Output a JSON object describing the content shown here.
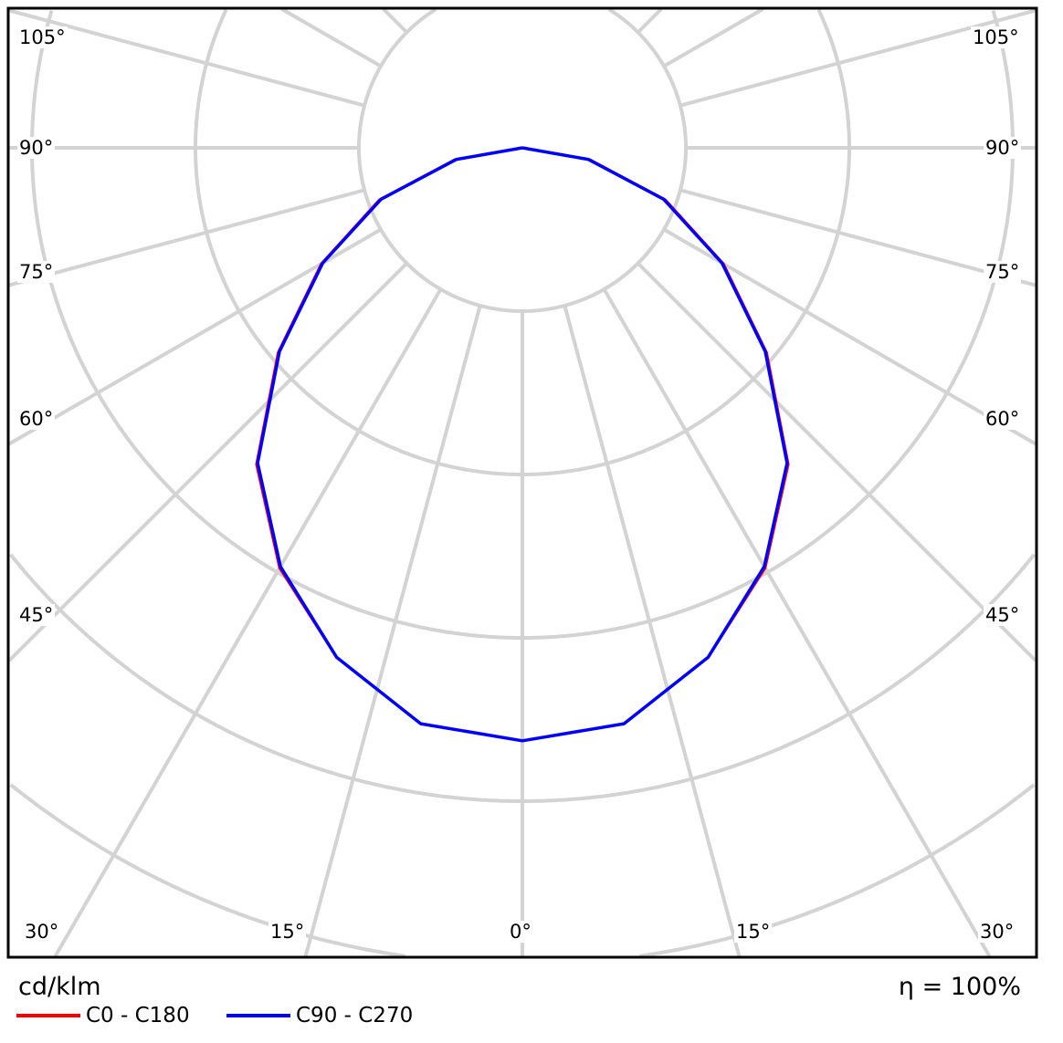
{
  "chart_data": {
    "type": "polar-line",
    "unit_label": "cd/klm",
    "efficiency_label": "η = 100%",
    "angle_labels": {
      "left": [
        "105°",
        "90°",
        "75°",
        "60°",
        "45°"
      ],
      "right": [
        "105°",
        "90°",
        "75°",
        "60°",
        "45°"
      ],
      "bottom": [
        "30°",
        "15°",
        "0°",
        "15°",
        "30°"
      ]
    },
    "grid": true,
    "angles_deg": [
      0,
      10,
      20,
      30,
      40,
      50,
      60,
      70,
      80,
      90
    ],
    "series": [
      {
        "name": "C0 - C180",
        "color": "#ff0000",
        "values": [
          3.63,
          3.58,
          3.32,
          2.97,
          2.53,
          1.95,
          1.42,
          0.93,
          0.42,
          0
        ]
      },
      {
        "name": "C90 - C270",
        "color": "#0000ff",
        "values": [
          3.63,
          3.58,
          3.32,
          2.96,
          2.52,
          1.94,
          1.41,
          0.92,
          0.41,
          0
        ]
      }
    ],
    "legend_position": "bottom-left"
  }
}
